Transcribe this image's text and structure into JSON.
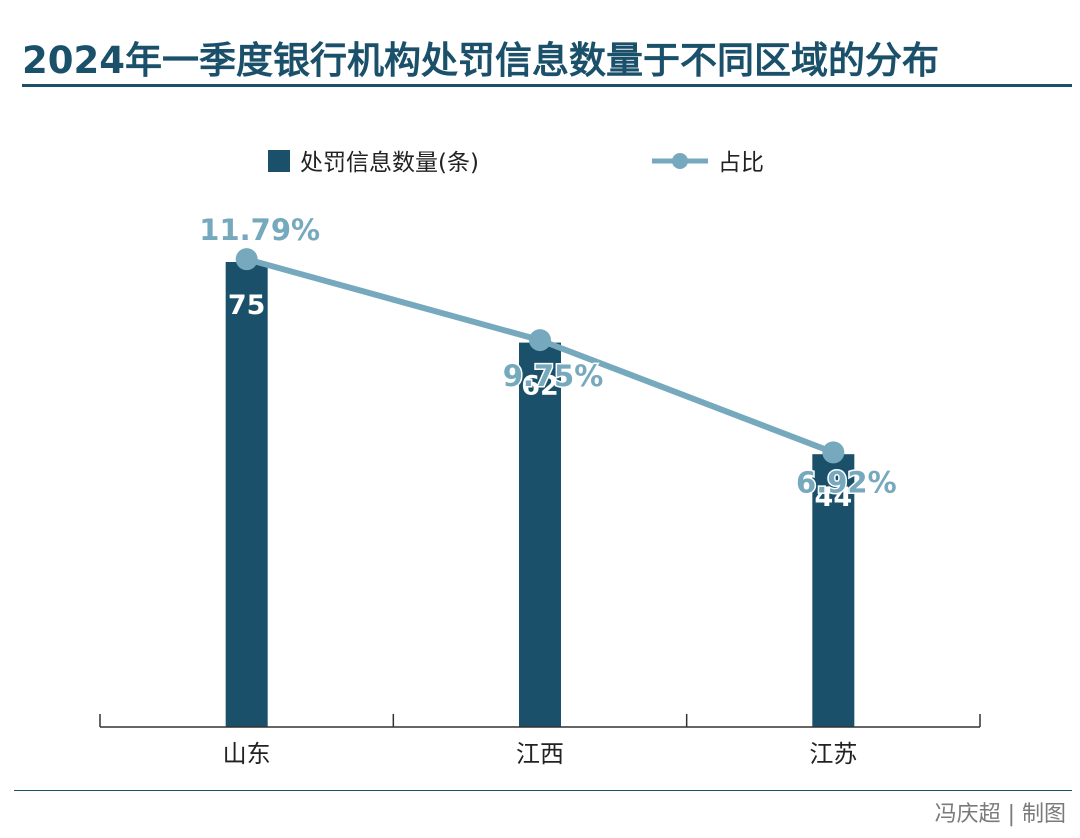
{
  "title": "2024年一季度银行机构处罚信息数量于不同区域的分布",
  "credit": "冯庆超 | 制图",
  "colors": {
    "bar": "#1a5069",
    "line": "#76a9bd",
    "axis": "#333333",
    "title": "#1a5069"
  },
  "chart_data": {
    "type": "bar",
    "categories": [
      "山东",
      "江西",
      "江苏"
    ],
    "series": [
      {
        "name": "处罚信息数量(条)",
        "type": "bar",
        "values": [
          75,
          62,
          44
        ]
      },
      {
        "name": "占比",
        "type": "line",
        "values": [
          11.79,
          9.75,
          6.92
        ],
        "labels": [
          "11.79%",
          "9.75%",
          "6.92%"
        ]
      }
    ],
    "ylim": [
      0,
      80
    ],
    "y2lim": [
      0,
      12.5
    ],
    "legend": "top-center",
    "grid": false
  }
}
